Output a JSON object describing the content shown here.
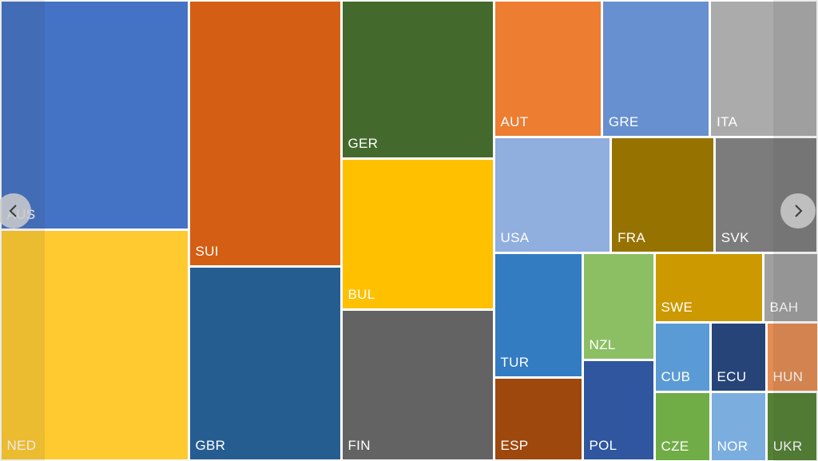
{
  "chart_data": {
    "type": "treemap",
    "items": [
      {
        "label": "AUS",
        "value": 6772,
        "color": "#4472C4"
      },
      {
        "label": "NED",
        "value": 6822,
        "color": "#FFCA2F"
      },
      {
        "label": "SUI",
        "value": 6378,
        "color": "#D45E13"
      },
      {
        "label": "GBR",
        "value": 4646,
        "color": "#265D91"
      },
      {
        "label": "GER",
        "value": 3570,
        "color": "#44692D"
      },
      {
        "label": "BUL",
        "value": 3401,
        "color": "#FFC000"
      },
      {
        "label": "FIN",
        "value": 3420,
        "color": "#636363"
      },
      {
        "label": "AUT",
        "value": 2200,
        "color": "#ED7D31"
      },
      {
        "label": "GRE",
        "value": 2200,
        "color": "#6690CF"
      },
      {
        "label": "ITA",
        "value": 2200,
        "color": "#ABABAB"
      },
      {
        "label": "USA",
        "value": 2236,
        "color": "#90AEDE"
      },
      {
        "label": "FRA",
        "value": 1978,
        "color": "#967300"
      },
      {
        "label": "SVK",
        "value": 1978,
        "color": "#7C7C7C"
      },
      {
        "label": "TUR",
        "value": 1680,
        "color": "#337CC2"
      },
      {
        "label": "ESP",
        "value": 1122,
        "color": "#9E480E"
      },
      {
        "label": "NZL",
        "value": 1440,
        "color": "#8CBF63"
      },
      {
        "label": "POL",
        "value": 1350,
        "color": "#2F569F"
      },
      {
        "label": "SWE",
        "value": 1160,
        "color": "#CC9900"
      },
      {
        "label": "BAH",
        "value": 600,
        "color": "#A0A0A0"
      },
      {
        "label": "CUB",
        "value": 756,
        "color": "#5B9BD5"
      },
      {
        "label": "ECU",
        "value": 756,
        "color": "#264478"
      },
      {
        "label": "HUN",
        "value": 702,
        "color": "#E58C52"
      },
      {
        "label": "CZE",
        "value": 736,
        "color": "#70AD47"
      },
      {
        "label": "NOR",
        "value": 736,
        "color": "#7BADDF"
      },
      {
        "label": "UKR",
        "value": 680,
        "color": "#548235"
      }
    ]
  },
  "navigation": {
    "prev_icon": "chevron-left-icon",
    "next_icon": "chevron-right-icon"
  }
}
